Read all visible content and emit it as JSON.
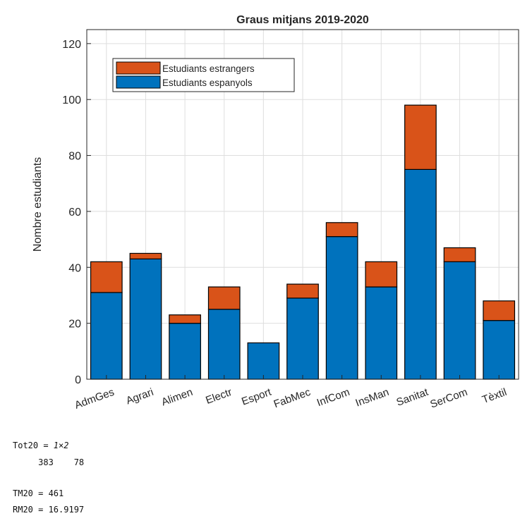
{
  "chart_data": {
    "type": "bar",
    "stacked": true,
    "title": "Graus mitjans 2019-2020",
    "xlabel": "",
    "ylabel": "Nombre estudiants",
    "categories": [
      "AdmGes",
      "Agrari",
      "Alimen",
      "Electr",
      "Esport",
      "FabMec",
      "InfCom",
      "InsMan",
      "Sanitat",
      "SerCom",
      "Tèxtil"
    ],
    "series": [
      {
        "name": "Estudiants espanyols",
        "color": "#0072BD",
        "values": [
          31,
          43,
          20,
          25,
          13,
          29,
          51,
          33,
          75,
          42,
          21
        ]
      },
      {
        "name": "Estudiants estrangers",
        "color": "#D95319",
        "values": [
          11,
          2,
          3,
          8,
          0,
          5,
          5,
          9,
          23,
          5,
          7
        ]
      }
    ],
    "ylim": [
      0,
      125
    ],
    "yticks": [
      0,
      20,
      40,
      60,
      80,
      100,
      120
    ],
    "grid": true,
    "legend_position": "top-left",
    "legend_order": [
      "Estudiants estrangers",
      "Estudiants espanyols"
    ]
  },
  "console": {
    "tot_label": "Tot20 = ",
    "tot_dims": "1×2",
    "tot_values": "     383    78",
    "tm_line": "TM20 = 461",
    "rm_line": "RM20 = 16.9197"
  }
}
